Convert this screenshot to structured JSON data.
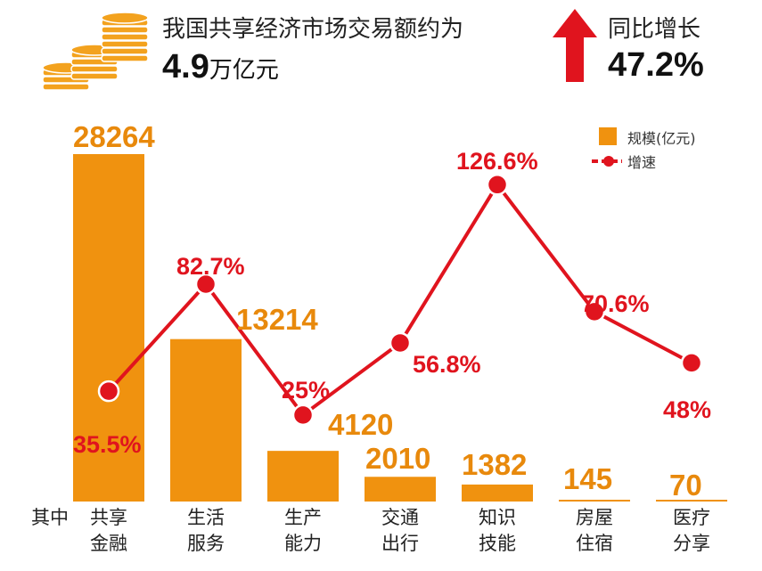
{
  "header": {
    "headline": "我国共享经济市场交易额约为",
    "total_value": "4.9",
    "total_unit": "万亿元",
    "growth_label": "同比增长",
    "growth_value": "47.2%",
    "prefix_label": "其中"
  },
  "colors": {
    "bar": "#F0920F",
    "line": "#E0141E",
    "coin": "#F3A21E"
  },
  "icons": [
    "coins-icon",
    "up-arrow-icon"
  ],
  "chart_data": {
    "type": "bar",
    "categories": [
      [
        "共享",
        "金融"
      ],
      [
        "生活",
        "服务"
      ],
      [
        "生产",
        "能力"
      ],
      [
        "交通",
        "出行"
      ],
      [
        "知识",
        "技能"
      ],
      [
        "房屋",
        "住宿"
      ],
      [
        "医疗",
        "分享"
      ]
    ],
    "series": [
      {
        "name": "规模(亿元)",
        "type": "bar",
        "values": [
          28264,
          13214,
          4120,
          2010,
          1382,
          145,
          70
        ]
      },
      {
        "name": "增速",
        "type": "line",
        "values": [
          35.5,
          82.7,
          25,
          56.8,
          126.6,
          70.6,
          48
        ]
      }
    ],
    "value_labels": [
      "28264",
      "13214",
      "4120",
      "2010",
      "1382",
      "145",
      "70"
    ],
    "rate_labels": [
      "35.5%",
      "82.7%",
      "25%",
      "56.8%",
      "126.6%",
      "70.6%",
      "48%"
    ],
    "legend": {
      "position": "top-right",
      "entries": [
        "规模(亿元)",
        "增速"
      ]
    }
  }
}
